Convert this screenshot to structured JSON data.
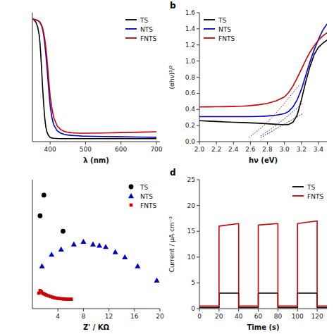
{
  "chart_data": [
    {
      "type": "line",
      "xlabel": "λ (nm)",
      "xlim": [
        350,
        710
      ],
      "ylim": [
        -0.02,
        1.05
      ],
      "xticks": [
        400,
        500,
        600,
        700
      ],
      "tick_labels": "x",
      "grid": false,
      "legend": "upper right",
      "x": [
        350,
        355,
        360,
        365,
        370,
        373,
        376,
        379,
        382,
        385,
        388,
        391,
        394,
        397,
        400,
        405,
        410,
        420,
        430,
        440,
        450,
        460,
        470,
        480,
        490,
        500,
        550,
        600,
        650,
        700
      ],
      "series": [
        {
          "name": "TS",
          "color": "#000000",
          "values": [
            1.0,
            0.99,
            0.97,
            0.93,
            0.85,
            0.73,
            0.58,
            0.42,
            0.28,
            0.17,
            0.1,
            0.06,
            0.04,
            0.025,
            0.015,
            0.01,
            0.008,
            0.006,
            0.005,
            0.005,
            0.005,
            0.005,
            0.005,
            0.005,
            0.005,
            0.005,
            0.005,
            0.005,
            0.005,
            0.005
          ]
        },
        {
          "name": "NTS",
          "color": "#0000cc",
          "values": [
            1.0,
            0.995,
            0.99,
            0.985,
            0.975,
            0.96,
            0.94,
            0.91,
            0.86,
            0.79,
            0.7,
            0.6,
            0.49,
            0.38,
            0.28,
            0.18,
            0.12,
            0.07,
            0.05,
            0.04,
            0.035,
            0.032,
            0.03,
            0.028,
            0.026,
            0.025,
            0.022,
            0.02,
            0.018,
            0.016
          ]
        },
        {
          "name": "FNTS",
          "color": "#cc0000",
          "values": [
            1.0,
            0.995,
            0.99,
            0.985,
            0.975,
            0.962,
            0.945,
            0.92,
            0.88,
            0.83,
            0.76,
            0.67,
            0.57,
            0.46,
            0.36,
            0.26,
            0.18,
            0.11,
            0.08,
            0.065,
            0.058,
            0.054,
            0.052,
            0.05,
            0.05,
            0.05,
            0.052,
            0.055,
            0.058,
            0.062
          ]
        }
      ]
    },
    {
      "type": "line",
      "annotation": "b",
      "xlabel": "hν (eV)",
      "ylabel": "(αhν)¹/²",
      "xlim": [
        2.0,
        3.5
      ],
      "ylim": [
        0.0,
        1.6
      ],
      "xticks": [
        {
          "value": 2.0,
          "label": "2.0"
        },
        2.2,
        2.4,
        2.6,
        2.8,
        {
          "value": 3.0,
          "label": "3.0"
        },
        3.2,
        3.4
      ],
      "yticks": [
        {
          "value": 0.0,
          "label": "0.0"
        },
        0.2,
        0.4,
        0.6,
        0.8,
        {
          "value": 1.0,
          "label": "1.0"
        },
        1.2,
        1.4,
        1.6
      ],
      "grid": false,
      "legend": "upper left",
      "series": [
        {
          "name": "TS",
          "color": "#000000",
          "line_style": "solid",
          "x": [
            2.0,
            2.1,
            2.2,
            2.3,
            2.4,
            2.5,
            2.6,
            2.7,
            2.8,
            2.9,
            3.0,
            3.05,
            3.1,
            3.15,
            3.2,
            3.25,
            3.3,
            3.35,
            3.4,
            3.45,
            3.5
          ],
          "values": [
            0.26,
            0.255,
            0.25,
            0.245,
            0.24,
            0.237,
            0.233,
            0.228,
            0.222,
            0.215,
            0.21,
            0.213,
            0.24,
            0.33,
            0.52,
            0.74,
            0.93,
            1.08,
            1.17,
            1.22,
            1.26
          ]
        },
        {
          "name": "NTS",
          "color": "#0000cc",
          "line_style": "solid",
          "x": [
            2.0,
            2.1,
            2.2,
            2.3,
            2.4,
            2.5,
            2.6,
            2.7,
            2.8,
            2.9,
            3.0,
            3.05,
            3.1,
            3.15,
            3.2,
            3.25,
            3.3,
            3.35,
            3.4,
            3.45,
            3.5
          ],
          "values": [
            0.31,
            0.31,
            0.31,
            0.31,
            0.31,
            0.31,
            0.31,
            0.313,
            0.318,
            0.328,
            0.348,
            0.375,
            0.43,
            0.52,
            0.65,
            0.82,
            0.99,
            1.14,
            1.27,
            1.38,
            1.46
          ]
        },
        {
          "name": "FNTS",
          "color": "#cc0000",
          "line_style": "solid",
          "x": [
            2.0,
            2.1,
            2.2,
            2.3,
            2.4,
            2.5,
            2.6,
            2.7,
            2.8,
            2.9,
            3.0,
            3.05,
            3.1,
            3.15,
            3.2,
            3.25,
            3.3,
            3.35,
            3.4,
            3.45,
            3.5
          ],
          "values": [
            0.43,
            0.432,
            0.433,
            0.434,
            0.436,
            0.44,
            0.447,
            0.458,
            0.475,
            0.505,
            0.555,
            0.61,
            0.69,
            0.79,
            0.9,
            1.01,
            1.11,
            1.19,
            1.26,
            1.31,
            1.35
          ]
        },
        {
          "color": "#000000",
          "line_style": "dotted",
          "x": [
            2.72,
            2.82,
            2.92,
            3.02,
            3.12,
            3.22
          ],
          "values": [
            0.05,
            0.11,
            0.17,
            0.23,
            0.29,
            0.35
          ]
        },
        {
          "color": "#0000cc",
          "line_style": "dotted",
          "x": [
            2.72,
            2.82,
            2.92,
            3.02,
            3.12,
            3.22
          ],
          "values": [
            0.07,
            0.14,
            0.22,
            0.3,
            0.39,
            0.48
          ]
        },
        {
          "color": "#cc0000",
          "line_style": "dotted",
          "x": [
            2.58,
            2.68,
            2.78,
            2.88,
            2.98,
            3.08,
            3.18
          ],
          "values": [
            0.05,
            0.13,
            0.22,
            0.33,
            0.45,
            0.58,
            0.71
          ]
        }
      ]
    },
    {
      "type": "scatter",
      "xlabel": "Z' / KΩ",
      "xlim": [
        0,
        20
      ],
      "ylim": [
        0.0,
        1.0
      ],
      "xticks": [
        4,
        8,
        12,
        16,
        20
      ],
      "tick_labels": "x",
      "grid": false,
      "legend": "upper right",
      "series": [
        {
          "name": "TS",
          "color": "#000000",
          "marker": "circle",
          "x": [
            1.2,
            1.8,
            4.8
          ],
          "values": [
            0.72,
            0.88,
            0.6
          ]
        },
        {
          "name": "NTS",
          "color": "#0000cc",
          "marker": "triangle",
          "x": [
            1.5,
            3.0,
            4.5,
            6.5,
            8.0,
            9.5,
            10.5,
            11.5,
            13.0,
            14.5,
            16.5,
            19.5
          ],
          "values": [
            0.33,
            0.42,
            0.46,
            0.5,
            0.52,
            0.5,
            0.49,
            0.48,
            0.44,
            0.4,
            0.33,
            0.22
          ]
        },
        {
          "name": "FNTS",
          "color": "#cc0000",
          "marker": "square",
          "x": [
            1.0,
            1.2,
            1.4,
            1.6,
            1.8,
            2.0,
            2.2,
            2.5,
            2.8,
            3.1,
            3.4,
            3.7,
            4.0,
            4.3,
            4.6,
            4.9,
            5.2,
            5.5,
            5.8,
            6.1
          ],
          "values": [
            0.12,
            0.14,
            0.13,
            0.12,
            0.115,
            0.11,
            0.105,
            0.1,
            0.095,
            0.09,
            0.085,
            0.082,
            0.08,
            0.078,
            0.076,
            0.075,
            0.074,
            0.073,
            0.073,
            0.073
          ]
        }
      ]
    },
    {
      "type": "line",
      "annotation": "d",
      "xlabel": "Time (s)",
      "ylabel": "Current / μA cm⁻²",
      "xlim": [
        0,
        130
      ],
      "ylim": [
        0,
        25
      ],
      "xticks": [
        0,
        20,
        40,
        60,
        80,
        100,
        120
      ],
      "yticks": [
        0,
        5,
        10,
        15,
        20,
        25
      ],
      "grid": false,
      "legend": "upper right",
      "x": [
        0,
        20,
        20,
        40,
        40,
        60,
        60,
        80,
        80,
        100,
        100,
        120,
        120,
        130
      ],
      "series": [
        {
          "name": "TS",
          "color": "#000000",
          "values": [
            0.2,
            0.2,
            3.0,
            3.0,
            0.2,
            0.2,
            3.0,
            3.0,
            0.2,
            0.2,
            3.0,
            3.0,
            0.2,
            0.2
          ]
        },
        {
          "name": "FNTS",
          "color": "#cc0000",
          "values": [
            0.5,
            0.5,
            16.0,
            16.5,
            0.5,
            0.5,
            16.2,
            16.5,
            0.5,
            0.5,
            16.5,
            17.0,
            0.5,
            0.5
          ]
        }
      ]
    }
  ]
}
